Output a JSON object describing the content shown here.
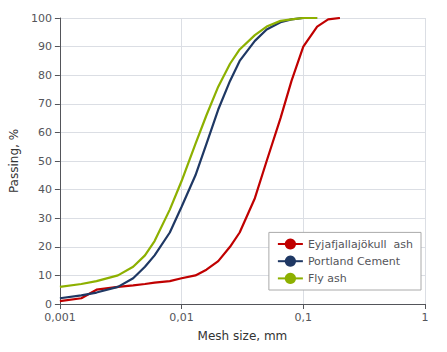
{
  "chart_data": {
    "type": "line",
    "xlabel": "Mesh size, mm",
    "ylabel": "Passing, %",
    "log": "x",
    "grid": true,
    "legend": "lower right",
    "xlim": [
      0.001,
      1.0
    ],
    "xticks": [
      {
        "value": 0.001,
        "label": "0,001"
      },
      {
        "value": 0.01,
        "label": "0,01"
      },
      {
        "value": 0.1,
        "label": "0,1"
      },
      1
    ],
    "ylim": [
      0,
      100
    ],
    "yticks": [
      0,
      10,
      20,
      30,
      40,
      50,
      60,
      70,
      80,
      90,
      100
    ],
    "series": [
      {
        "name": "Eyjafjallajökull  ash",
        "color": "#c00000",
        "x": [
          0.001,
          0.0015,
          0.002,
          0.003,
          0.004,
          0.005,
          0.006,
          0.008,
          0.01,
          0.013,
          0.016,
          0.02,
          0.025,
          0.03,
          0.04,
          0.05,
          0.065,
          0.08,
          0.1,
          0.13,
          0.16,
          0.2
        ],
        "values": [
          1,
          2,
          5,
          6,
          6.5,
          7,
          7.5,
          8,
          9,
          10,
          12,
          15,
          20,
          25,
          37,
          50,
          65,
          78,
          90,
          97,
          99.5,
          100
        ]
      },
      {
        "name": "Portland Cement",
        "color": "#1f3864",
        "x": [
          0.001,
          0.0015,
          0.002,
          0.003,
          0.004,
          0.005,
          0.006,
          0.008,
          0.01,
          0.013,
          0.016,
          0.02,
          0.025,
          0.03,
          0.04,
          0.05,
          0.065,
          0.08,
          0.1,
          0.13
        ],
        "values": [
          2,
          3,
          4,
          6,
          9,
          13,
          17,
          25,
          34,
          45,
          56,
          68,
          78,
          85,
          92,
          96,
          98.5,
          99.5,
          100,
          100
        ]
      },
      {
        "name": "Fly ash",
        "color": "#8db000",
        "x": [
          0.001,
          0.0015,
          0.002,
          0.003,
          0.004,
          0.005,
          0.006,
          0.008,
          0.01,
          0.013,
          0.016,
          0.02,
          0.025,
          0.03,
          0.04,
          0.05,
          0.065,
          0.08,
          0.1,
          0.13
        ],
        "values": [
          6,
          7,
          8,
          10,
          13,
          17,
          22,
          33,
          43,
          56,
          66,
          76,
          84,
          89,
          94,
          97,
          99,
          99.5,
          100,
          100
        ]
      }
    ]
  }
}
